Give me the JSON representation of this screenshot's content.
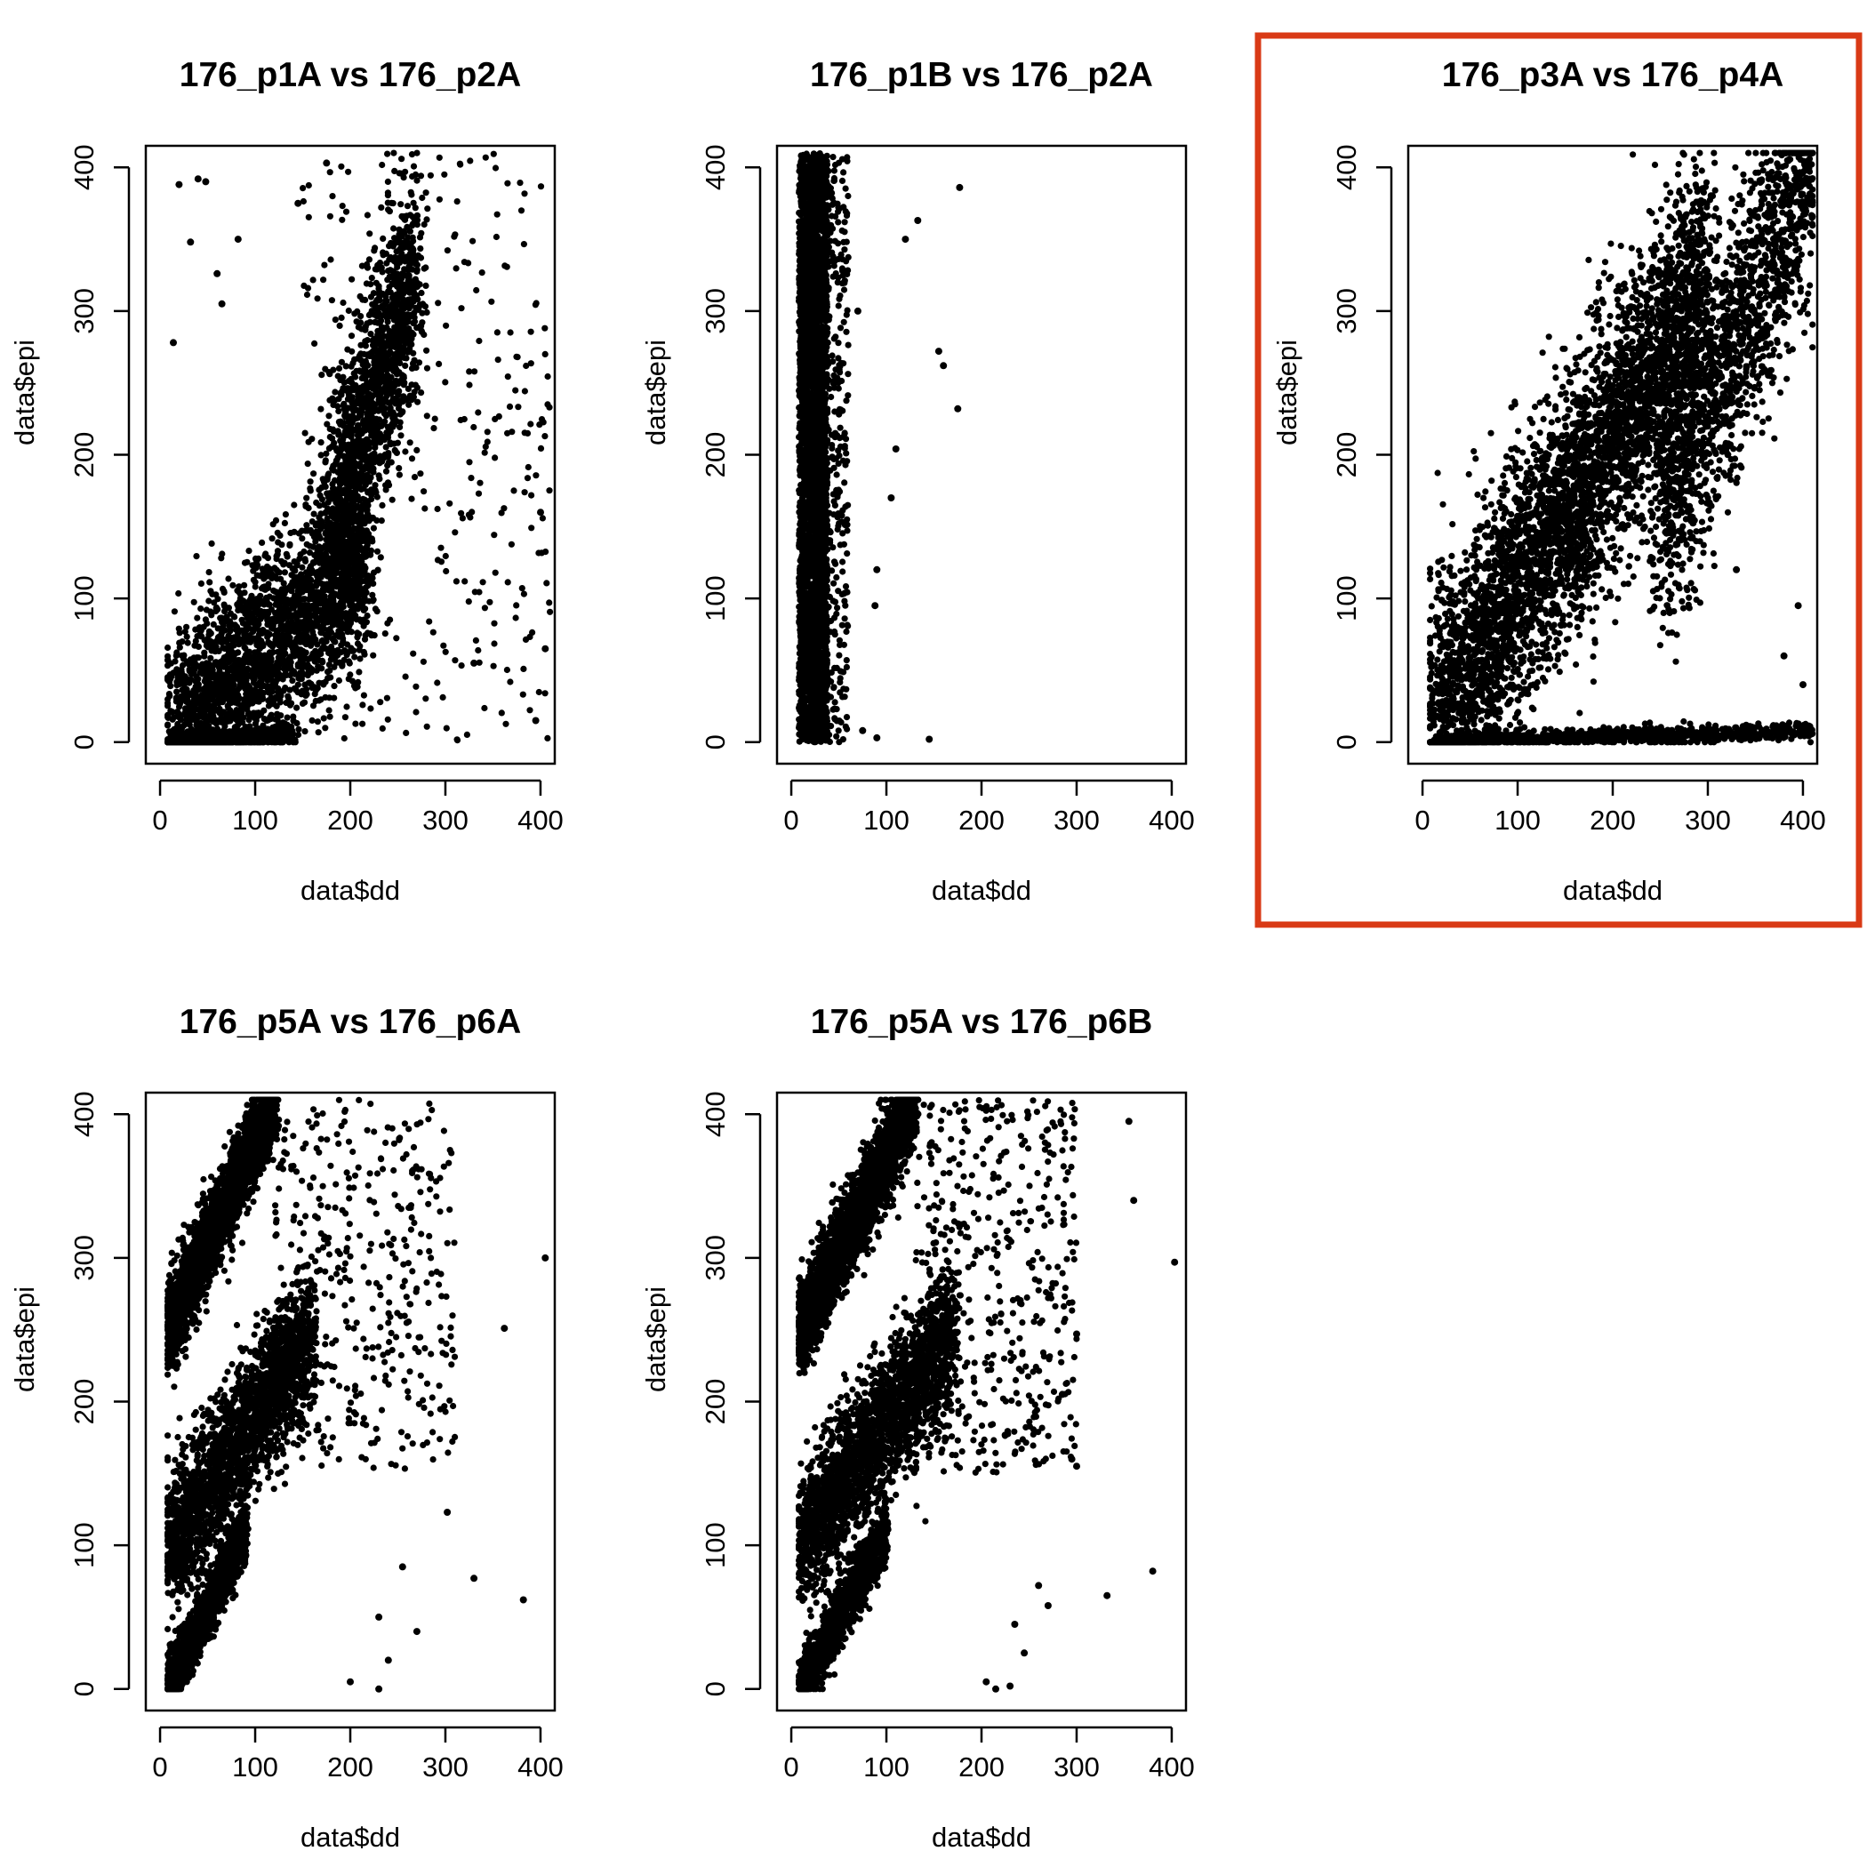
{
  "highlight_color": "#d93a16",
  "point_color": "#000000",
  "panels": [
    {
      "title": "176_p1A vs 176_p2A",
      "highlighted": false,
      "chart_data": {
        "type": "scatter",
        "title": "176_p1A vs 176_p2A",
        "xlabel": "data$dd",
        "ylabel": "data$epi",
        "xlim": [
          -15,
          415
        ],
        "ylim": [
          -15,
          415
        ],
        "xticks": [
          "0",
          "100",
          "200",
          "300",
          "400"
        ],
        "yticks": [
          "0",
          "100",
          "200",
          "300",
          "400"
        ],
        "clusters": [
          {
            "n": 2600,
            "cx": [
              8,
              220
            ],
            "cy": [
              0,
              130
            ],
            "spread": 35
          },
          {
            "n": 1400,
            "cx": [
              180,
              270
            ],
            "cy": [
              150,
              330
            ],
            "spread": 40
          },
          {
            "n": 700,
            "cx": [
              20,
              140
            ],
            "cy": [
              0,
              5
            ],
            "spread": 3
          },
          {
            "n": 350,
            "cx": [
              150,
              410
            ],
            "cy": [
              0,
              410
            ],
            "spread": 0
          }
        ],
        "outliers": [
          [
            14,
            278
          ],
          [
            20,
            388
          ],
          [
            32,
            348
          ],
          [
            40,
            392
          ],
          [
            48,
            390
          ],
          [
            60,
            326
          ],
          [
            65,
            305
          ],
          [
            82,
            350
          ],
          [
            145,
            375
          ],
          [
            175,
            403
          ],
          [
            330,
            55
          ],
          [
            400,
            160
          ],
          [
            405,
            65
          ],
          [
            395,
            15
          ]
        ]
      }
    },
    {
      "title": "176_p1B vs 176_p2A",
      "highlighted": true,
      "chart_data": {
        "type": "scatter",
        "title": "176_p1B vs 176_p2A",
        "xlabel": "data$dd",
        "ylabel": "data$epi",
        "xlim": [
          -15,
          415
        ],
        "ylim": [
          -15,
          415
        ],
        "xticks": [
          "0",
          "100",
          "200",
          "300",
          "400"
        ],
        "yticks": [
          "0",
          "100",
          "200",
          "300",
          "400"
        ],
        "clusters": [
          {
            "n": 3600,
            "cx": [
              8,
              38
            ],
            "cy": [
              0,
              410
            ],
            "spread": 0
          },
          {
            "n": 300,
            "cx": [
              35,
              60
            ],
            "cy": [
              0,
              410
            ],
            "spread": 0
          }
        ],
        "outliers": [
          [
            177,
            386
          ],
          [
            133,
            363
          ],
          [
            155,
            272
          ],
          [
            160,
            262
          ],
          [
            175,
            232
          ],
          [
            110,
            204
          ],
          [
            105,
            170
          ],
          [
            90,
            120
          ],
          [
            88,
            95
          ],
          [
            145,
            2
          ],
          [
            75,
            8
          ],
          [
            90,
            3
          ],
          [
            120,
            350
          ],
          [
            70,
            300
          ]
        ]
      }
    },
    {
      "title": "176_p3A vs 176_p4A",
      "highlighted": false,
      "chart_data": {
        "type": "scatter",
        "title": "176_p3A vs 176_p4A",
        "xlabel": "data$dd",
        "ylabel": "data$epi",
        "xlim": [
          -15,
          415
        ],
        "ylim": [
          -15,
          415
        ],
        "xticks": [
          "0",
          "100",
          "200",
          "300",
          "400"
        ],
        "yticks": [
          "0",
          "100",
          "200",
          "300",
          "400"
        ],
        "clusters": [
          {
            "n": 4200,
            "cx": [
              10,
              300
            ],
            "cy": [
              10,
              320
            ],
            "spread": 45
          },
          {
            "n": 1500,
            "cx": [
              250,
              410
            ],
            "cy": [
              150,
              410
            ],
            "spread": 45
          },
          {
            "n": 900,
            "cx": [
              10,
              410
            ],
            "cy": [
              0,
              8
            ],
            "spread": 3
          }
        ],
        "outliers": [
          [
            395,
            95
          ],
          [
            380,
            60
          ],
          [
            400,
            40
          ],
          [
            330,
            120
          ]
        ]
      }
    },
    {
      "title": "176_p5A vs 176_p6A",
      "highlighted": false,
      "chart_data": {
        "type": "scatter",
        "title": "176_p5A vs 176_p6A",
        "xlabel": "data$dd",
        "ylabel": "data$epi",
        "xlim": [
          -15,
          415
        ],
        "ylim": [
          -15,
          415
        ],
        "xticks": [
          "0",
          "100",
          "200",
          "300",
          "400"
        ],
        "yticks": [
          "0",
          "100",
          "200",
          "300",
          "400"
        ],
        "clusters": [
          {
            "n": 2600,
            "cx": [
              8,
              120
            ],
            "cy": [
              250,
              410
            ],
            "spread": 15
          },
          {
            "n": 2200,
            "cx": [
              8,
              160
            ],
            "cy": [
              100,
              250
            ],
            "spread": 25
          },
          {
            "n": 1600,
            "cx": [
              8,
              90
            ],
            "cy": [
              0,
              110
            ],
            "spread": 10
          },
          {
            "n": 400,
            "cx": [
              120,
              310
            ],
            "cy": [
              150,
              410
            ],
            "spread": 0
          }
        ],
        "outliers": [
          [
            405,
            300
          ],
          [
            362,
            251
          ],
          [
            302,
            123
          ],
          [
            330,
            77
          ],
          [
            382,
            62
          ],
          [
            255,
            85
          ],
          [
            230,
            50
          ],
          [
            240,
            20
          ],
          [
            200,
            5
          ],
          [
            230,
            0
          ],
          [
            270,
            40
          ]
        ]
      }
    },
    {
      "title": "176_p5A vs 176_p6B",
      "highlighted": false,
      "chart_data": {
        "type": "scatter",
        "title": "176_p5A vs 176_p6B",
        "xlabel": "data$dd",
        "ylabel": "data$epi",
        "xlim": [
          -15,
          415
        ],
        "ylim": [
          -15,
          415
        ],
        "xticks": [
          "0",
          "100",
          "200",
          "300",
          "400"
        ],
        "yticks": [
          "0",
          "100",
          "200",
          "300",
          "400"
        ],
        "clusters": [
          {
            "n": 2800,
            "cx": [
              8,
              130
            ],
            "cy": [
              250,
              410
            ],
            "spread": 15
          },
          {
            "n": 2200,
            "cx": [
              8,
              170
            ],
            "cy": [
              100,
              250
            ],
            "spread": 25
          },
          {
            "n": 1600,
            "cx": [
              8,
              100
            ],
            "cy": [
              0,
              110
            ],
            "spread": 10
          },
          {
            "n": 450,
            "cx": [
              130,
              300
            ],
            "cy": [
              150,
              410
            ],
            "spread": 0
          }
        ],
        "outliers": [
          [
            403,
            297
          ],
          [
            355,
            395
          ],
          [
            360,
            340
          ],
          [
            300,
            247
          ],
          [
            285,
            205
          ],
          [
            295,
            160
          ],
          [
            300,
            155
          ],
          [
            380,
            82
          ],
          [
            332,
            65
          ],
          [
            270,
            58
          ],
          [
            260,
            72
          ],
          [
            235,
            45
          ],
          [
            245,
            25
          ],
          [
            230,
            2
          ],
          [
            205,
            5
          ],
          [
            215,
            0
          ]
        ]
      }
    }
  ]
}
